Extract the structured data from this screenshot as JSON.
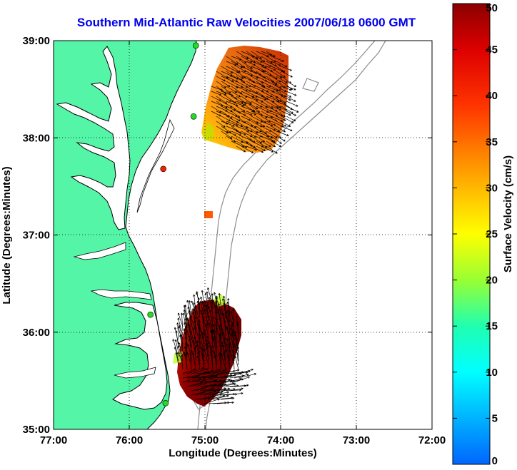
{
  "title": "Southern Mid-Atlantic Raw Velocities 2007/06/18 0600 GMT",
  "xlabel": "Longitude (Degrees:Minutes)",
  "ylabel": "Latitude (Degrees:Minutes)",
  "x_ticks": [
    "77:00",
    "76:00",
    "75:00",
    "74:00",
    "73:00",
    "72:00"
  ],
  "y_ticks": [
    "39:00",
    "38:00",
    "37:00",
    "36:00",
    "35:00"
  ],
  "colorbar": {
    "label": "Surface Velocity (cm/s)",
    "ticks": [
      "50",
      "45",
      "40",
      "35",
      "30",
      "25",
      "20",
      "15",
      "10",
      "5",
      "0"
    ],
    "range": [
      0,
      50
    ]
  },
  "colors": {
    "land": "#55f5a8",
    "shelf_contour": "#8c8c8c",
    "title": "#0000ee",
    "station": "#22dd22",
    "station_alert": "#ee2200"
  },
  "map_extent": {
    "lon": [
      -77,
      -72
    ],
    "lat": [
      35,
      39
    ]
  },
  "stations": [
    {
      "lon": -75.12,
      "lat": 38.95,
      "status": "ok"
    },
    {
      "lon": -75.15,
      "lat": 38.22,
      "status": "ok"
    },
    {
      "lon": -75.55,
      "lat": 37.68,
      "status": "alert"
    },
    {
      "lon": -75.72,
      "lat": 36.18,
      "status": "ok"
    },
    {
      "lon": -75.52,
      "lat": 35.27,
      "status": "ok"
    }
  ]
}
